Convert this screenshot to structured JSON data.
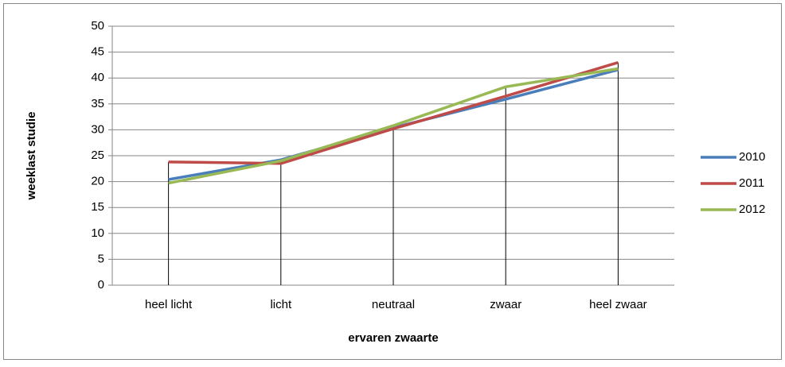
{
  "chart_data": {
    "type": "line",
    "x_label": "ervaren zwaarte",
    "y_label": "weeklast studie",
    "categories": [
      "heel licht",
      "licht",
      "neutraal",
      "zwaar",
      "heel zwaar"
    ],
    "series": [
      {
        "name": "2010",
        "color": "#4a7ebb",
        "values": [
          20.4,
          24.2,
          30.4,
          35.9,
          41.6
        ]
      },
      {
        "name": "2011",
        "color": "#be4b48",
        "values": [
          23.8,
          23.5,
          30.2,
          36.5,
          43.0
        ]
      },
      {
        "name": "2012",
        "color": "#98b954",
        "values": [
          19.7,
          24.0,
          30.8,
          38.3,
          41.8
        ]
      }
    ],
    "ylim": [
      0,
      50
    ],
    "yticks": [
      0,
      5,
      10,
      15,
      20,
      25,
      30,
      35,
      40,
      45,
      50
    ],
    "grid": true,
    "drop_lines": true,
    "legend": "right"
  }
}
